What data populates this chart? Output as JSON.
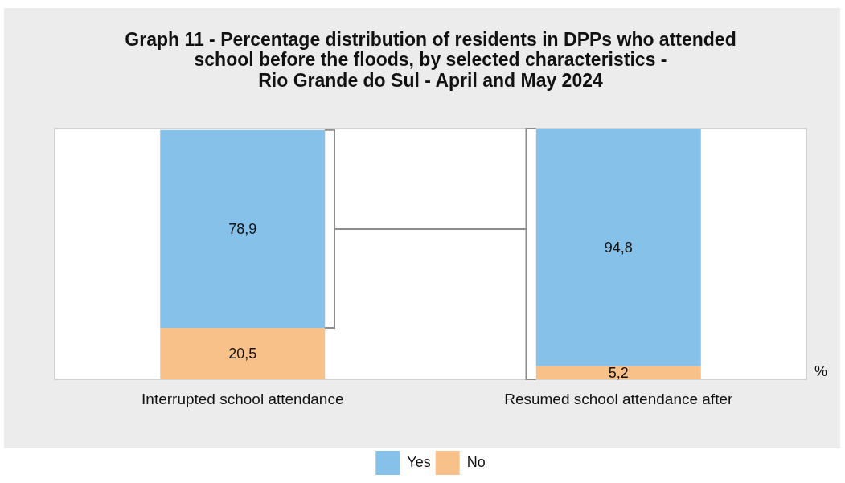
{
  "chart_data": {
    "type": "bar",
    "title": "Graph 11 - Percentage distribution of residents in DPPs who attended\nschool before the floods, by selected characteristics -\nRio Grande do Sul - April and May 2024",
    "categories": [
      "Interrupted school attendance",
      "Resumed school attendance after"
    ],
    "series": [
      {
        "name": "No",
        "color": "#f9c18a",
        "values": [
          20.5,
          5.2
        ],
        "value_labels": [
          "20,5",
          "5,2"
        ]
      },
      {
        "name": "Yes",
        "color": "#85c1e9",
        "values": [
          78.9,
          94.8
        ],
        "value_labels": [
          "78,9",
          "94,8"
        ]
      }
    ],
    "stacked": true,
    "legend": "bottom",
    "tick_labels": "x",
    "annotations": [
      "%"
    ]
  }
}
